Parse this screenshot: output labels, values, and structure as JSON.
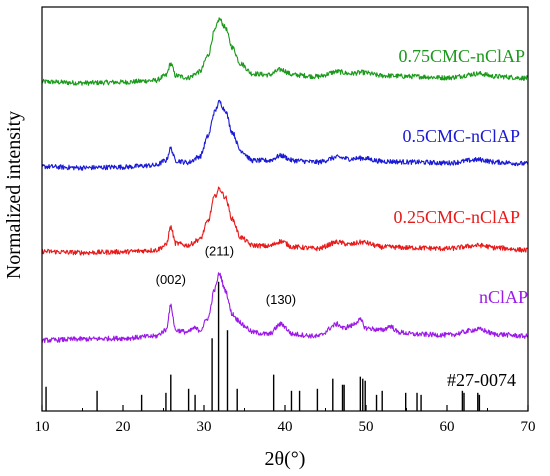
{
  "chart_data": {
    "type": "line",
    "xlabel": "2θ(°)",
    "ylabel": "Normalized intensity",
    "xlim": [
      10,
      70
    ],
    "x_ticks": [
      "10",
      "20",
      "30",
      "40",
      "50",
      "60",
      "70"
    ],
    "y_ticks": "none",
    "grid": false,
    "series": [
      {
        "name": "0.75CMC-nClAP",
        "color": "#1a9a1a",
        "baseline": 0.81,
        "x": [
          10,
          15,
          20,
          24,
          25.3,
          25.9,
          26.5,
          28,
          29.5,
          30.5,
          31.3,
          31.9,
          32.6,
          33.5,
          34.5,
          36,
          38,
          39.5,
          41,
          44,
          46.5,
          48,
          49.5,
          52,
          56,
          60,
          64,
          66,
          70
        ],
        "y": [
          0.815,
          0.812,
          0.814,
          0.818,
          0.83,
          0.86,
          0.83,
          0.825,
          0.84,
          0.88,
          0.94,
          0.97,
          0.95,
          0.9,
          0.86,
          0.835,
          0.832,
          0.845,
          0.832,
          0.828,
          0.84,
          0.835,
          0.838,
          0.83,
          0.828,
          0.825,
          0.835,
          0.828,
          0.824
        ]
      },
      {
        "name": "0.5CMC-nClAP",
        "color": "#1a1ad4",
        "baseline": 0.6,
        "x": [
          10,
          15,
          20,
          24,
          25.3,
          25.9,
          26.5,
          28,
          29.5,
          30.5,
          31.3,
          31.9,
          32.6,
          33.5,
          34.5,
          36,
          38,
          39.5,
          41,
          44,
          46.5,
          48,
          49.5,
          52,
          56,
          60,
          64,
          66,
          70
        ],
        "y": [
          0.605,
          0.602,
          0.604,
          0.608,
          0.62,
          0.65,
          0.62,
          0.615,
          0.63,
          0.68,
          0.74,
          0.765,
          0.745,
          0.69,
          0.645,
          0.62,
          0.62,
          0.632,
          0.62,
          0.616,
          0.628,
          0.624,
          0.626,
          0.618,
          0.616,
          0.614,
          0.622,
          0.616,
          0.612
        ]
      },
      {
        "name": "0.25CMC-nClAP",
        "color": "#e81a1a",
        "baseline": 0.39,
        "x": [
          10,
          15,
          20,
          24,
          25.3,
          25.9,
          26.5,
          28,
          29.5,
          30.5,
          31.3,
          31.9,
          32.6,
          33.5,
          34.5,
          36,
          38,
          39.5,
          41,
          44,
          46.5,
          48,
          49.5,
          52,
          56,
          60,
          64,
          66,
          70
        ],
        "y": [
          0.395,
          0.392,
          0.394,
          0.398,
          0.41,
          0.455,
          0.415,
          0.41,
          0.425,
          0.47,
          0.53,
          0.55,
          0.53,
          0.475,
          0.43,
          0.41,
          0.408,
          0.42,
          0.406,
          0.402,
          0.418,
          0.412,
          0.418,
          0.406,
          0.404,
          0.402,
          0.41,
          0.404,
          0.398
        ]
      },
      {
        "name": "nClAP",
        "color": "#9b1ae8",
        "baseline": 0.17,
        "x": [
          10,
          15,
          20,
          24,
          25.3,
          25.9,
          26.5,
          28,
          28.8,
          29.5,
          30.5,
          31.3,
          31.9,
          32.6,
          33.5,
          34.2,
          35,
          36,
          38,
          39.5,
          41,
          44,
          46.5,
          47.2,
          48,
          49.3,
          50,
          52,
          53,
          54,
          56,
          60,
          64,
          66,
          70
        ],
        "y": [
          0.175,
          0.178,
          0.18,
          0.185,
          0.2,
          0.26,
          0.2,
          0.195,
          0.205,
          0.2,
          0.23,
          0.3,
          0.34,
          0.3,
          0.24,
          0.225,
          0.21,
          0.195,
          0.19,
          0.215,
          0.19,
          0.185,
          0.215,
          0.205,
          0.21,
          0.225,
          0.205,
          0.2,
          0.21,
          0.195,
          0.19,
          0.188,
          0.202,
          0.19,
          0.185
        ]
      }
    ],
    "reference": {
      "label": "#27-0074",
      "color": "#000000",
      "x": [
        10.5,
        16.8,
        22.3,
        25.3,
        25.9,
        28.1,
        28.9,
        31.0,
        31.8,
        32.9,
        34.1,
        38.6,
        40.8,
        41.8,
        44.0,
        45.9,
        47.1,
        47.3,
        49.3,
        49.6,
        49.9,
        51.3,
        52.0,
        54.9,
        56.3,
        56.8,
        61.9,
        62.1,
        63.8,
        64.0
      ],
      "y": [
        0.06,
        0.05,
        0.04,
        0.045,
        0.09,
        0.055,
        0.04,
        0.18,
        0.32,
        0.2,
        0.055,
        0.09,
        0.05,
        0.05,
        0.055,
        0.08,
        0.065,
        0.065,
        0.085,
        0.08,
        0.075,
        0.04,
        0.05,
        0.045,
        0.045,
        0.04,
        0.05,
        0.045,
        0.045,
        0.04
      ]
    },
    "annotations": [
      {
        "text": "(002)",
        "x": 25.9,
        "y": 0.3
      },
      {
        "text": "(211)",
        "x": 31.9,
        "y": 0.37
      },
      {
        "text": "(130)",
        "x": 39.5,
        "y": 0.25
      }
    ]
  }
}
